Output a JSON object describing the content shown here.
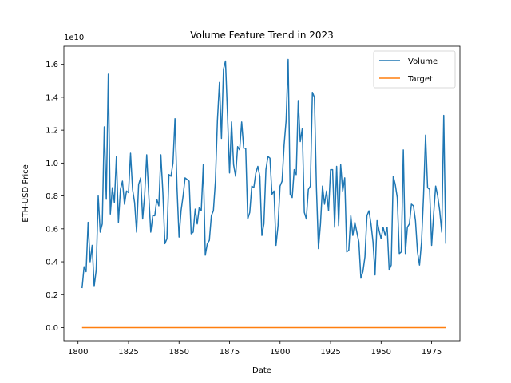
{
  "chart_data": {
    "type": "line",
    "title": "Volume Feature Trend in 2023",
    "xlabel": "Date",
    "ylabel": "ETH-USD Price",
    "y_offset_label": "1e10",
    "xlim": [
      1793,
      1989
    ],
    "ylim": [
      -0.08,
      1.71
    ],
    "x_ticks": [
      1800,
      1825,
      1850,
      1875,
      1900,
      1925,
      1950,
      1975
    ],
    "y_ticks": [
      0.0,
      0.2,
      0.4,
      0.6,
      0.8,
      1.0,
      1.2,
      1.4,
      1.6
    ],
    "x_tick_labels": [
      "1800",
      "1825",
      "1850",
      "1875",
      "1900",
      "1925",
      "1950",
      "1975"
    ],
    "y_tick_labels": [
      "0.0",
      "0.2",
      "0.4",
      "0.6",
      "0.8",
      "1.0",
      "1.2",
      "1.4",
      "1.6"
    ],
    "grid": false,
    "legend_position": "upper right",
    "series": [
      {
        "name": "Volume",
        "color": "#1f77b4",
        "x": [
          1802,
          1803,
          1804,
          1805,
          1806,
          1807,
          1808,
          1809,
          1810,
          1811,
          1812,
          1813,
          1814,
          1815,
          1816,
          1817,
          1818,
          1819,
          1820,
          1821,
          1822,
          1823,
          1824,
          1825,
          1826,
          1827,
          1828,
          1829,
          1830,
          1831,
          1832,
          1833,
          1834,
          1835,
          1836,
          1837,
          1838,
          1839,
          1840,
          1841,
          1842,
          1843,
          1844,
          1845,
          1846,
          1847,
          1848,
          1849,
          1850,
          1851,
          1852,
          1853,
          1854,
          1855,
          1856,
          1857,
          1858,
          1859,
          1860,
          1861,
          1862,
          1863,
          1864,
          1865,
          1866,
          1867,
          1868,
          1869,
          1870,
          1871,
          1872,
          1873,
          1874,
          1875,
          1876,
          1877,
          1878,
          1879,
          1880,
          1881,
          1882,
          1883,
          1884,
          1885,
          1886,
          1887,
          1888,
          1889,
          1890,
          1891,
          1892,
          1893,
          1894,
          1895,
          1896,
          1897,
          1898,
          1899,
          1900,
          1901,
          1902,
          1903,
          1904,
          1905,
          1906,
          1907,
          1908,
          1909,
          1910,
          1911,
          1912,
          1913,
          1914,
          1915,
          1916,
          1917,
          1918,
          1919,
          1920,
          1921,
          1922,
          1923,
          1924,
          1925,
          1926,
          1927,
          1928,
          1929,
          1930,
          1931,
          1932,
          1933,
          1934,
          1935,
          1936,
          1937,
          1938,
          1939,
          1940,
          1941,
          1942,
          1943,
          1944,
          1945,
          1946,
          1947,
          1948,
          1949,
          1950,
          1951,
          1952,
          1953,
          1954,
          1955,
          1956,
          1957,
          1958,
          1959,
          1960,
          1961,
          1962,
          1963,
          1964,
          1965,
          1966,
          1967,
          1968,
          1969,
          1970,
          1971,
          1972,
          1973,
          1974,
          1975,
          1976,
          1977,
          1978,
          1979,
          1980,
          1981,
          1982
        ],
        "values": [
          0.24,
          0.37,
          0.34,
          0.64,
          0.4,
          0.5,
          0.25,
          0.35,
          0.8,
          0.58,
          0.63,
          1.22,
          0.78,
          1.54,
          0.69,
          0.85,
          0.76,
          1.04,
          0.64,
          0.84,
          0.89,
          0.75,
          0.83,
          0.82,
          1.06,
          0.84,
          0.76,
          0.58,
          0.87,
          0.91,
          0.66,
          0.81,
          1.05,
          0.81,
          0.58,
          0.68,
          0.68,
          0.78,
          0.74,
          1.05,
          0.82,
          0.51,
          0.54,
          0.93,
          0.92,
          1.0,
          1.27,
          0.85,
          0.55,
          0.71,
          0.8,
          0.91,
          0.9,
          0.89,
          0.57,
          0.58,
          0.72,
          0.63,
          0.73,
          0.71,
          0.99,
          0.44,
          0.51,
          0.53,
          0.68,
          0.71,
          0.89,
          1.26,
          1.49,
          1.15,
          1.57,
          1.62,
          1.29,
          0.94,
          1.25,
          0.99,
          0.92,
          1.1,
          1.08,
          1.25,
          1.09,
          1.09,
          0.66,
          0.7,
          0.86,
          0.85,
          0.94,
          0.98,
          0.92,
          0.56,
          0.63,
          0.96,
          1.04,
          1.03,
          0.81,
          0.83,
          0.5,
          0.62,
          0.86,
          0.89,
          1.11,
          1.26,
          1.63,
          0.81,
          0.79,
          0.96,
          0.93,
          1.38,
          1.13,
          1.21,
          0.7,
          0.66,
          0.84,
          0.86,
          1.43,
          1.4,
          0.85,
          0.48,
          0.63,
          0.86,
          0.75,
          0.83,
          0.71,
          0.96,
          0.96,
          0.61,
          0.98,
          0.62,
          0.99,
          0.83,
          0.91,
          0.46,
          0.47,
          0.68,
          0.56,
          0.64,
          0.58,
          0.52,
          0.3,
          0.34,
          0.43,
          0.68,
          0.71,
          0.63,
          0.52,
          0.32,
          0.65,
          0.59,
          0.54,
          0.61,
          0.56,
          0.61,
          0.35,
          0.38,
          0.92,
          0.87,
          0.79,
          0.45,
          0.46,
          1.08,
          0.45,
          0.61,
          0.63,
          0.75,
          0.74,
          0.65,
          0.46,
          0.38,
          0.52,
          0.8,
          1.17,
          0.85,
          0.84,
          0.5,
          0.69,
          0.86,
          0.8,
          0.71,
          0.58,
          1.29,
          0.51
        ]
      },
      {
        "name": "Target",
        "color": "#ff7f0e",
        "x": [
          1802,
          1982
        ],
        "values": [
          0.0,
          0.0
        ]
      }
    ]
  }
}
